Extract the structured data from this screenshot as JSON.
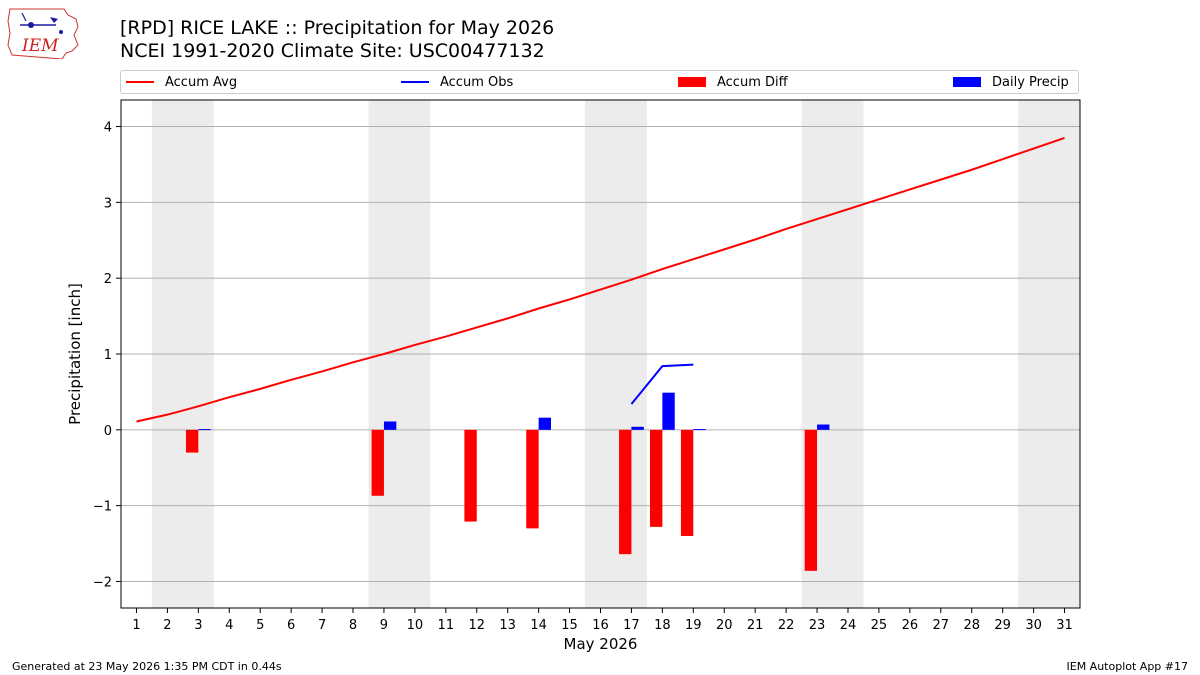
{
  "header": {
    "logo_text": "IEM",
    "title": "[RPD] RICE LAKE :: Precipitation for May 2026",
    "subtitle": "NCEI 1991-2020 Climate Site: USC00477132"
  },
  "footer": {
    "left": "Generated at 23 May 2026 1:35 PM CDT in 0.44s",
    "right": "IEM Autoplot App #17"
  },
  "colors": {
    "accum_avg": "#ff0000",
    "accum_obs": "#0000ff",
    "accum_diff": "#ff0000",
    "daily_precip": "#0000ff",
    "weekend_shade": "#ececec",
    "grid": "#b0b0b0"
  },
  "chart_data": {
    "type": "bar",
    "xlabel": "May 2026",
    "ylabel": "Precipitation [inch]",
    "xlim": [
      0.5,
      31.5
    ],
    "ylim": [
      -2.35,
      4.35
    ],
    "yticks": [
      -2,
      -1,
      0,
      1,
      2,
      3,
      4
    ],
    "ytick_labels": [
      "−2",
      "−1",
      "0",
      "1",
      "2",
      "3",
      "4"
    ],
    "x_ticks": [
      1,
      2,
      3,
      4,
      5,
      6,
      7,
      8,
      9,
      10,
      11,
      12,
      13,
      14,
      15,
      16,
      17,
      18,
      19,
      20,
      21,
      22,
      23,
      24,
      25,
      26,
      27,
      28,
      29,
      30,
      31
    ],
    "grid": "horizontal",
    "legend_position": "top",
    "weekends": [
      [
        2,
        3
      ],
      [
        9,
        10
      ],
      [
        16,
        17
      ],
      [
        23,
        24
      ],
      [
        30,
        31
      ]
    ],
    "series": [
      {
        "name": "Accum Avg",
        "kind": "line",
        "x": [
          1,
          2,
          3,
          4,
          5,
          6,
          7,
          8,
          9,
          10,
          11,
          12,
          13,
          14,
          15,
          16,
          17,
          18,
          19,
          20,
          21,
          22,
          23,
          24,
          25,
          26,
          27,
          28,
          29,
          30,
          31
        ],
        "values": [
          0.11,
          0.2,
          0.31,
          0.43,
          0.54,
          0.66,
          0.77,
          0.89,
          1.0,
          1.12,
          1.23,
          1.35,
          1.47,
          1.6,
          1.72,
          1.85,
          1.98,
          2.12,
          2.25,
          2.38,
          2.51,
          2.65,
          2.78,
          2.91,
          3.04,
          3.17,
          3.3,
          3.43,
          3.57,
          3.71,
          3.85
        ]
      },
      {
        "name": "Accum Obs",
        "kind": "line",
        "x": [
          17,
          18,
          19
        ],
        "values": [
          0.34,
          0.84,
          0.86
        ]
      },
      {
        "name": "Accum Diff",
        "kind": "bar",
        "x": [
          3,
          9,
          12,
          14,
          17,
          18,
          19,
          23
        ],
        "values": [
          -0.3,
          -0.87,
          -1.21,
          -1.3,
          -1.64,
          -1.28,
          -1.4,
          -1.86
        ]
      },
      {
        "name": "Daily Precip",
        "kind": "bar",
        "x": [
          3,
          9,
          14,
          17,
          18,
          19,
          23
        ],
        "values": [
          0.01,
          0.11,
          0.16,
          0.04,
          0.49,
          0.01,
          0.07
        ]
      }
    ]
  }
}
